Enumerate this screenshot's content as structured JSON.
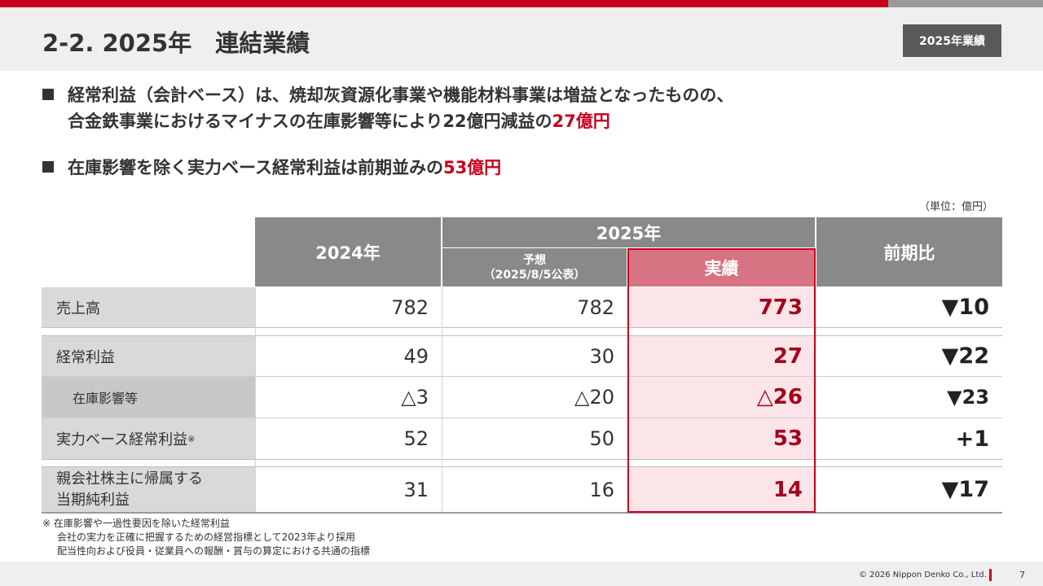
{
  "header": {
    "title": "2-2. 2025年　連結業績",
    "tag": "2025年業績"
  },
  "bullets": [
    {
      "line1": "経常利益（会計ベース）は、焼却灰資源化事業や機能材料事業は増益となったものの、",
      "line2_pre": "合金鉄事業におけるマイナスの在庫影響等により22億円減益の",
      "line2_hl": "27億円"
    },
    {
      "pre": "在庫影響を除く実力ベース経常利益は前期並みの",
      "hl": "53億円"
    }
  ],
  "unit": "（単位：億円）",
  "table": {
    "col_2024": "2024年",
    "col_2025": "2025年",
    "col_forecast_l1": "予想",
    "col_forecast_l2": "（2025/8/5公表）",
    "col_actual": "実績",
    "col_diff": "前期比",
    "rows": [
      {
        "label": "売上高",
        "y2024": "782",
        "forecast": "782",
        "actual": "773",
        "diff": "▼10"
      },
      {
        "label": "経常利益",
        "y2024": "49",
        "forecast": "30",
        "actual": "27",
        "diff": "▼22"
      },
      {
        "label": "在庫影響等",
        "y2024": "△3",
        "forecast": "△20",
        "actual": "△26",
        "diff": "▼23"
      },
      {
        "label": "実力ベース経常利益",
        "label_sup": "※",
        "y2024": "52",
        "forecast": "50",
        "actual": "53",
        "diff": "+1"
      },
      {
        "label_l1": "親会社株主に帰属する",
        "label_l2": "当期純利益",
        "y2024": "31",
        "forecast": "16",
        "actual": "14",
        "diff": "▼17"
      }
    ]
  },
  "notes": {
    "line1": "※ 在庫影響や一過性要因を除いた経常利益",
    "line2": "会社の実力を正確に把握するための経営指標として2023年より採用",
    "line3": "配当性向および役員・従業員への報酬・賞与の算定における共通の指標"
  },
  "footer": {
    "copyright": "© 2026 Nippon Denko Co., Ltd.",
    "page": "7"
  },
  "colors": {
    "accent_red": "#c8001e",
    "header_gray": "#898989",
    "actual_header": "#d67483",
    "actual_fill": "#fbe5e8"
  }
}
